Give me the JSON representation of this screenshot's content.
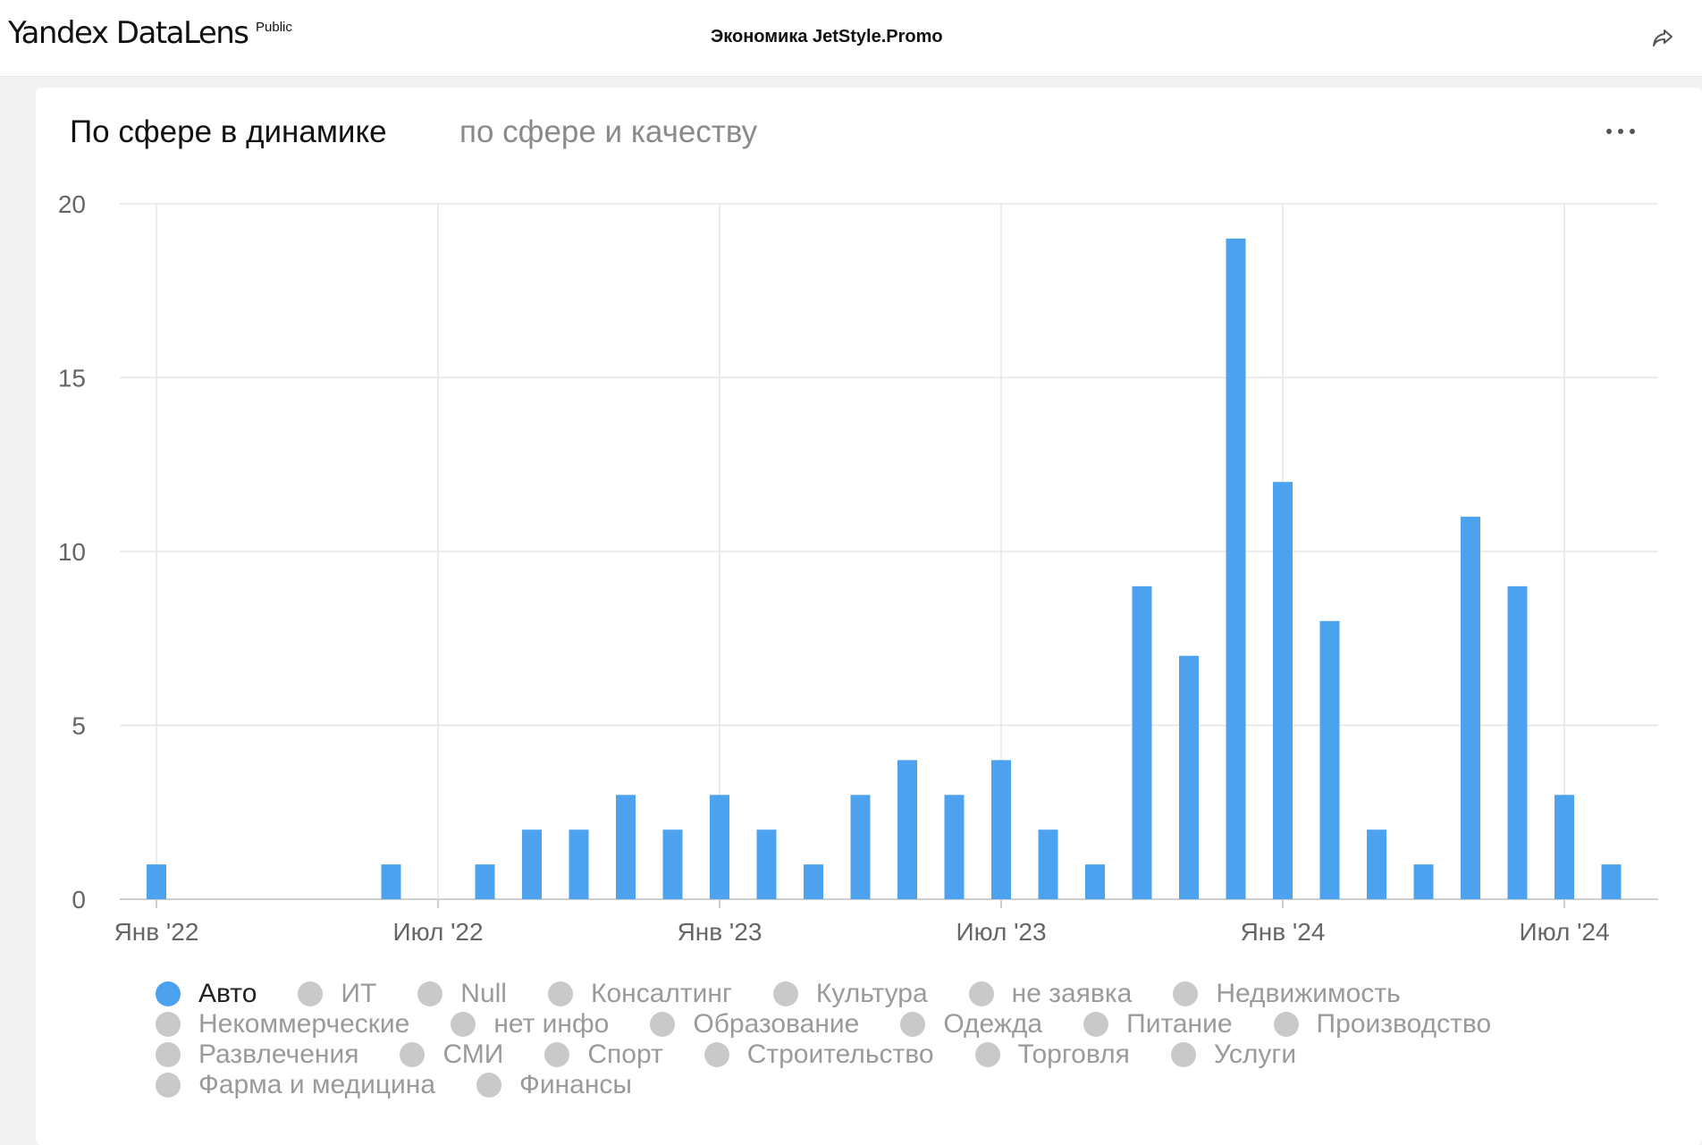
{
  "header": {
    "logo": "Yandex DataLens",
    "badge": "Public",
    "dashboard_title": "Экономика JetStyle.Promo"
  },
  "tabs": [
    {
      "label": "По сфере в динамике",
      "active": true
    },
    {
      "label": "по сфере и качеству",
      "active": false
    }
  ],
  "colors": {
    "bar": "#4da2ef",
    "grid": "#e5e5e5",
    "inactive_legend": "#c9c9c9"
  },
  "chart_data": {
    "type": "bar",
    "x": [
      "2022-01",
      "2022-02",
      "2022-03",
      "2022-04",
      "2022-05",
      "2022-06",
      "2022-07",
      "2022-08",
      "2022-09",
      "2022-10",
      "2022-11",
      "2022-12",
      "2023-01",
      "2023-02",
      "2023-03",
      "2023-04",
      "2023-05",
      "2023-06",
      "2023-07",
      "2023-08",
      "2023-09",
      "2023-10",
      "2023-11",
      "2023-12",
      "2024-01",
      "2024-02",
      "2024-03",
      "2024-04",
      "2024-05",
      "2024-06",
      "2024-07",
      "2024-08"
    ],
    "series": [
      {
        "name": "Авто",
        "values": [
          1,
          0,
          0,
          0,
          0,
          1,
          0,
          1,
          2,
          2,
          3,
          2,
          3,
          2,
          1,
          3,
          4,
          3,
          4,
          2,
          1,
          9,
          7,
          19,
          12,
          8,
          2,
          1,
          11,
          9,
          3,
          1
        ]
      }
    ],
    "x_tick_labels": [
      "Янв '22",
      "Июл '22",
      "Янв '23",
      "Июл '23",
      "Янв '24",
      "Июл '24"
    ],
    "y_ticks": [
      0,
      5,
      10,
      15,
      20
    ],
    "ylim": [
      0,
      20
    ],
    "grid": true,
    "legend_position": "bottom",
    "legend": [
      "Авто",
      "ИТ",
      "Null",
      "Консалтинг",
      "Культура",
      "не заявка",
      "Недвижимость",
      "Некоммерческие",
      "нет инфо",
      "Образование",
      "Одежда",
      "Питание",
      "Производство",
      "Развлечения",
      "СМИ",
      "Спорт",
      "Строительство",
      "Торговля",
      "Услуги",
      "Фарма и медицина",
      "Финансы"
    ],
    "active_legend": [
      "Авто"
    ]
  }
}
